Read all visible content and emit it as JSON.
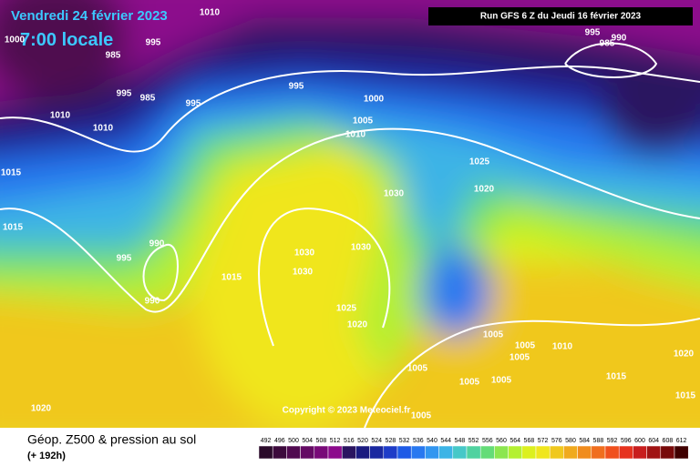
{
  "header": {
    "valid_date": "Vendredi 24 février 2023",
    "local_time": "7:00 locale",
    "run": "Run GFS 6 Z du Jeudi 16 février 2023"
  },
  "copyright": "Copyright © 2023 Meteociel.fr",
  "footer": {
    "title": "Géop. Z500 & pression au sol",
    "lead": "(+ 192h)"
  },
  "isobars": [
    "1010",
    "995",
    "985",
    "995",
    "985",
    "995",
    "995",
    "1010",
    "1010",
    "1000",
    "1005",
    "1010",
    "1015",
    "1025",
    "1020",
    "1030",
    "1015",
    "990",
    "995",
    "1030",
    "1030",
    "1030",
    "1015",
    "990",
    "1025",
    "1020",
    "1005",
    "1005",
    "1005",
    "1010",
    "1020",
    "1005",
    "1015",
    "1005",
    "1005",
    "1015",
    "1005",
    "1020",
    "995",
    "990",
    "985",
    "1000"
  ],
  "colorbar": {
    "ticks": [
      492,
      496,
      500,
      504,
      508,
      512,
      516,
      520,
      524,
      528,
      532,
      536,
      540,
      544,
      548,
      552,
      556,
      560,
      564,
      568,
      572,
      576,
      580,
      584,
      588,
      592,
      596,
      600,
      604,
      608,
      612
    ],
    "colors": [
      "#2a0a2a",
      "#3c0a3c",
      "#500a50",
      "#640a64",
      "#780a78",
      "#8c0a8c",
      "#2a1460",
      "#1a1a80",
      "#1a28a0",
      "#1e3cc8",
      "#1e5ae6",
      "#2878f0",
      "#3296f0",
      "#3cb4e6",
      "#46c8c8",
      "#50d2a0",
      "#64dc78",
      "#8ce650",
      "#b4f032",
      "#dcf01e",
      "#f0e61e",
      "#f0c81e",
      "#f0aa1e",
      "#f08c1e",
      "#f06e1e",
      "#f0501e",
      "#e6321e",
      "#c81e1e",
      "#a01414",
      "#780a0a",
      "#400000"
    ]
  }
}
